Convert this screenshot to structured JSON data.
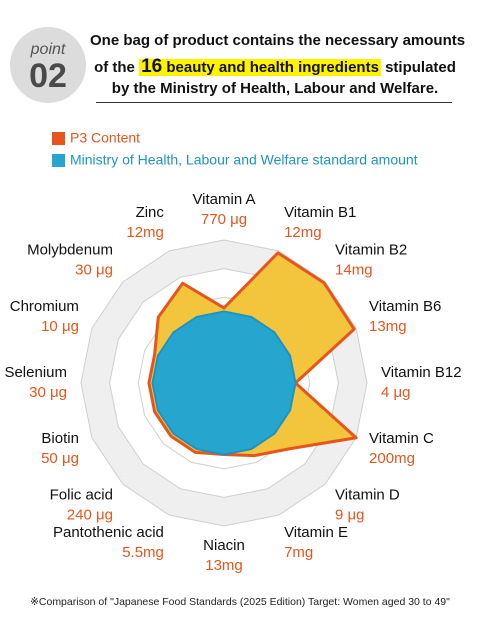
{
  "header": {
    "badge_word": "point",
    "badge_number": "02",
    "line1": "One bag of product contains the necessary amounts",
    "line2_before": "of the",
    "line2_number": "16",
    "line2_highlight": "beauty and health ingredients",
    "line2_after": "stipulated",
    "line3": "by the Ministry of Health, Labour and Welfare."
  },
  "chart_data": {
    "type": "radar",
    "categories": [
      "Vitamin A",
      "Vitamin B1",
      "Vitamin B2",
      "Vitamin B6",
      "Vitamin B12",
      "Vitamin C",
      "Vitamin D",
      "Vitamin E",
      "Niacin",
      "Pantothenic acid",
      "Folic acid",
      "Biotin",
      "Selenium",
      "Chromium",
      "Molybdenum",
      "Zinc"
    ],
    "amounts": [
      "770 μg",
      "12mg",
      "14mg",
      "13mg",
      "4 μg",
      "200mg",
      "9 μg",
      "7mg",
      "13mg",
      "5.5mg",
      "240 μg",
      "50 μg",
      "30 μg",
      "10 μg",
      "30 μg",
      "12mg"
    ],
    "rlim": [
      0,
      200
    ],
    "rticks": [
      40,
      80,
      120,
      160,
      200
    ],
    "grid": true,
    "series": [
      {
        "name": "P3 Content",
        "color": "#e8551c",
        "fill": "#f2c53d",
        "values": [
          105,
          197,
          198,
          197,
          100,
          200,
          130,
          110,
          100,
          105,
          105,
          105,
          105,
          105,
          130,
          151
        ]
      },
      {
        "name": "Ministry of Health, Labour and Welfare standard amount",
        "color": "#1e93c2",
        "fill": "#26a6cf",
        "values": [
          100,
          100,
          100,
          100,
          100,
          100,
          100,
          100,
          100,
          100,
          100,
          100,
          100,
          100,
          100,
          100
        ]
      }
    ]
  },
  "footnote": "※Comparison of \"Japanese Food Standards (2025 Edition) Target: Women aged 30 to 49\""
}
